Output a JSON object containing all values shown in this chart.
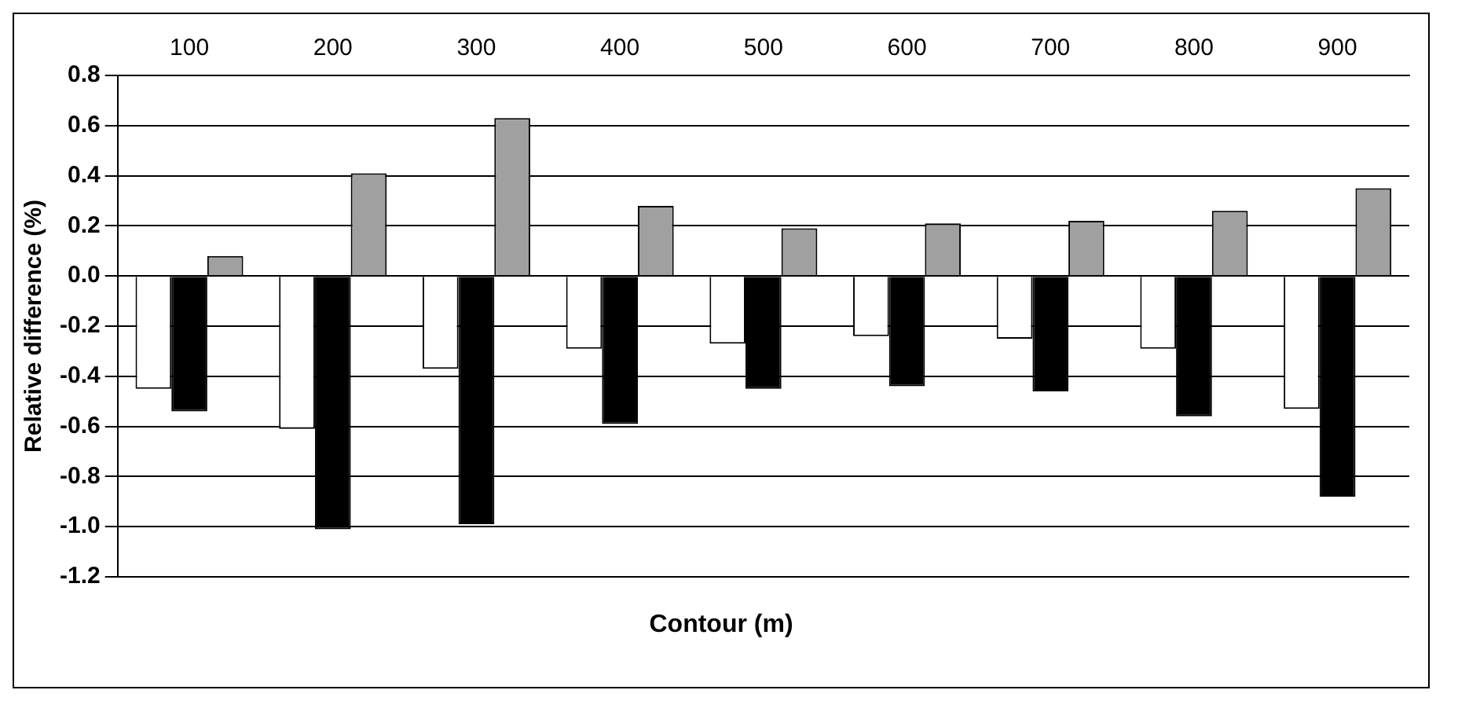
{
  "chart_data": {
    "type": "bar",
    "xlabel": "Contour (m)",
    "ylabel": "Relative difference (%)",
    "categories": [
      "100",
      "200",
      "300",
      "400",
      "500",
      "600",
      "700",
      "800",
      "900"
    ],
    "series": [
      {
        "color": "#ffffff",
        "values": [
          -0.45,
          -0.61,
          -0.37,
          -0.29,
          -0.27,
          -0.24,
          -0.25,
          -0.29,
          -0.53
        ]
      },
      {
        "color": "#000000",
        "values": [
          -0.54,
          -1.01,
          -0.99,
          -0.59,
          -0.45,
          -0.44,
          -0.46,
          -0.56,
          -0.88
        ]
      },
      {
        "color": "#a0a0a0",
        "values": [
          0.08,
          0.41,
          0.63,
          0.28,
          0.19,
          0.21,
          0.22,
          0.26,
          0.35
        ]
      }
    ],
    "ylim": [
      -1.2,
      0.8
    ],
    "yticks": [
      -1.2,
      {
        "value": -1,
        "label": "-1.0"
      },
      -0.8,
      -0.6,
      -0.4,
      -0.2,
      {
        "value": 0,
        "label": "0.0"
      },
      0.2,
      0.4,
      0.6,
      0.8
    ],
    "grid": "y",
    "legend": false
  }
}
